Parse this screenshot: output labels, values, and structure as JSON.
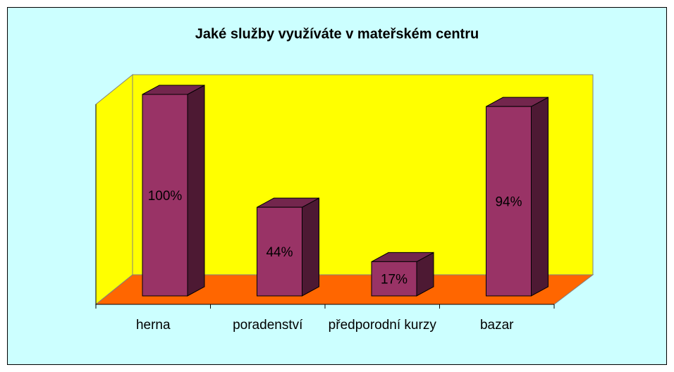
{
  "chart_data": {
    "type": "bar3d",
    "title": "Jaké služby využíváte v mateřském centru",
    "categories": [
      "herna",
      "poradenství",
      "předporodní kurzy",
      "bazar"
    ],
    "values": [
      100,
      44,
      17,
      94
    ],
    "value_labels": [
      "100%",
      "44%",
      "17%",
      "94%"
    ],
    "ylim": [
      0,
      100
    ],
    "color": "#993366",
    "wall_color": "#ffff00",
    "floor_color": "#ff6600",
    "background": "#ccffff"
  }
}
